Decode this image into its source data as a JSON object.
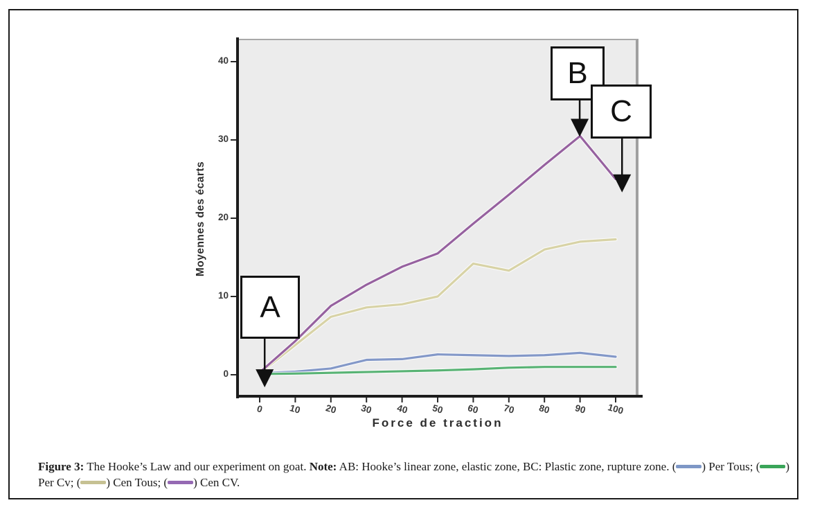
{
  "figure": {
    "caption": {
      "segments": [
        {
          "t": "b",
          "v": "Figure 3:"
        },
        {
          "t": "",
          "v": " The Hooke’s Law and our experiment on goat. "
        },
        {
          "t": "b",
          "v": "Note:"
        },
        {
          "t": "",
          "v": " AB: Hooke’s linear zone, elastic zone, BC: Plastic zone, rupture zone. ("
        },
        {
          "t": "sw",
          "v": "#7e97c6"
        },
        {
          "t": "",
          "v": ") Per Tous; ("
        },
        {
          "t": "sw",
          "v": "#3aa559"
        },
        {
          "t": "",
          "v": ") Per Cv; ("
        },
        {
          "t": "sw",
          "v": "#c6c193"
        },
        {
          "t": "",
          "v": ") Cen Tous; ("
        },
        {
          "t": "sw",
          "v": "#9569b3"
        },
        {
          "t": "",
          "v": ") Cen CV."
        }
      ]
    }
  },
  "chart_data": {
    "type": "line",
    "title": "",
    "xlabel": "Force de traction",
    "ylabel": "Moyennes des écarts",
    "x": [
      0,
      10,
      20,
      30,
      40,
      50,
      60,
      70,
      80,
      90,
      100
    ],
    "x_ticks": [
      0,
      10,
      20,
      30,
      40,
      50,
      60,
      70,
      80,
      90,
      100
    ],
    "y_ticks": [
      0,
      10,
      20,
      30,
      40
    ],
    "xlim": [
      -6,
      106
    ],
    "ylim": [
      -2.6,
      43
    ],
    "grid": false,
    "legend_position": "in-caption",
    "plot_bg": "#ececec",
    "series": [
      {
        "name": "Per Tous",
        "color": "#8398c8",
        "values": [
          0.2,
          0.4,
          0.8,
          1.9,
          2.0,
          2.6,
          2.5,
          2.4,
          2.5,
          2.8,
          2.3
        ]
      },
      {
        "name": "Per Cv",
        "color": "#58b374",
        "values": [
          0.1,
          0.15,
          0.25,
          0.35,
          0.45,
          0.55,
          0.7,
          0.9,
          1.0,
          1.0,
          1.0
        ]
      },
      {
        "name": "Cen Tous",
        "color": "#d8d3a6",
        "values": [
          0.2,
          3.8,
          7.4,
          8.6,
          9.0,
          10.0,
          14.2,
          13.3,
          16.0,
          17.0,
          17.3
        ]
      },
      {
        "name": "Cen CV",
        "color": "#96619f",
        "values": [
          0.3,
          4.3,
          8.8,
          11.5,
          13.8,
          15.5,
          19.3,
          23.0,
          26.8,
          30.5,
          25.0
        ]
      }
    ],
    "annotations": [
      {
        "label": "A",
        "x": 1.4,
        "y": -1.6
      },
      {
        "label": "B",
        "x": 89.9,
        "y": 30.4
      },
      {
        "label": "C",
        "x": 101.8,
        "y": 23.3
      }
    ]
  }
}
